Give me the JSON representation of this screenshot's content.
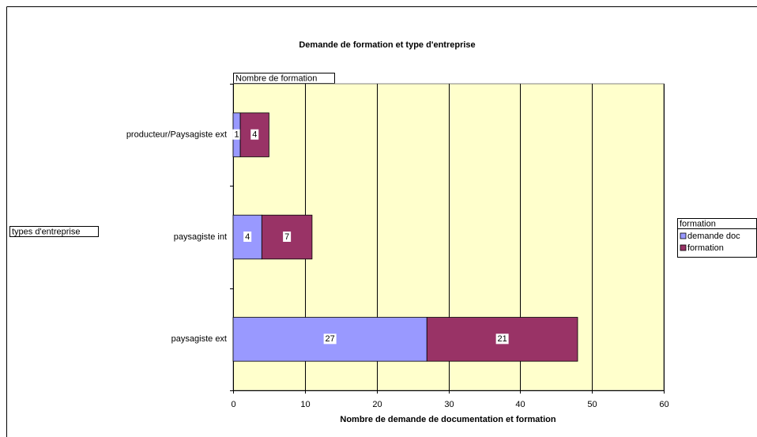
{
  "chart_data": {
    "type": "stacked_barh",
    "title": "Demande de formation et type d'entreprise",
    "data_field": "Nombre de formation",
    "row_field": "types d'entreprise",
    "legend_title": "formation",
    "xlabel": "Nombre de demande de documentation et formation",
    "categories": [
      "producteur/Paysagiste ext",
      "paysagiste int",
      "paysagiste ext"
    ],
    "series": [
      {
        "name": "demande doc",
        "color": "#9999ff",
        "values": [
          1,
          4,
          27
        ]
      },
      {
        "name": "formation",
        "color": "#993366",
        "values": [
          4,
          7,
          21
        ]
      }
    ],
    "xlim": [
      0,
      60
    ],
    "xticks": [
      0,
      10,
      20,
      30,
      40,
      50,
      60
    ],
    "grid": true,
    "legend": "right",
    "plot_background": "#ffffcc"
  }
}
